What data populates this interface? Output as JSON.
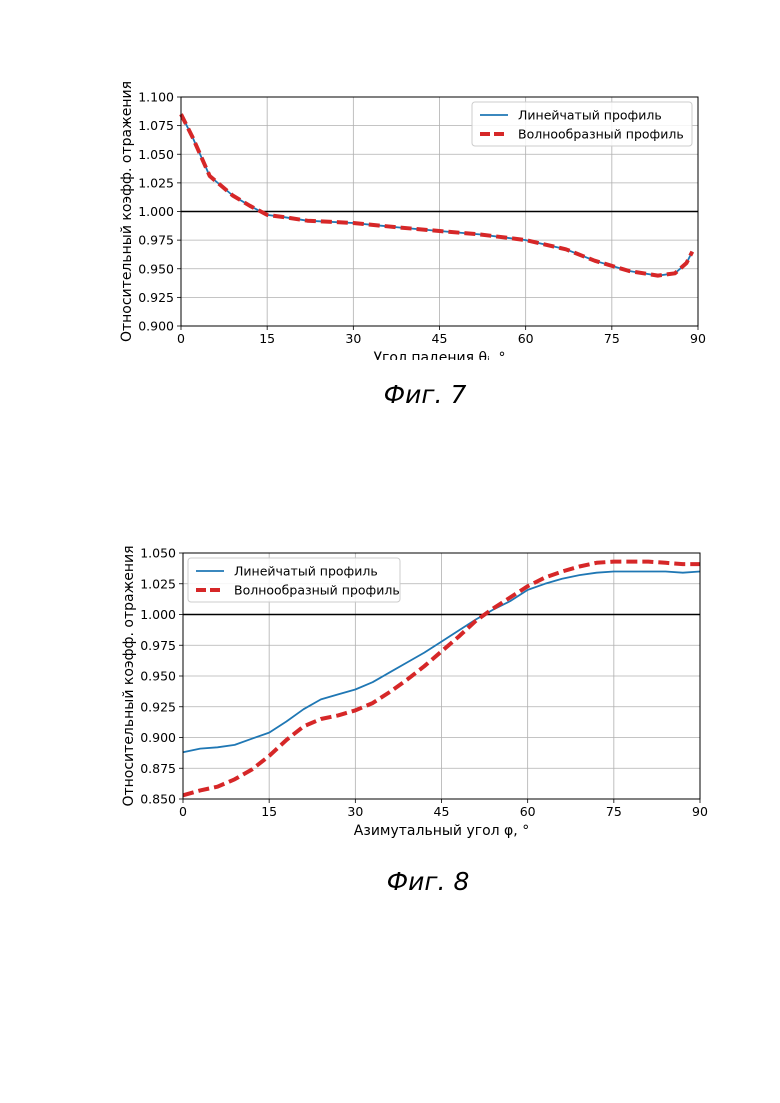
{
  "charts": [
    {
      "id": "fig7",
      "caption": "Фиг. 7",
      "chart_data": {
        "type": "line",
        "xlabel": "Угол падения θᵢ, °",
        "ylabel": "Относительный коэфф. отражения",
        "xlim": [
          0,
          90
        ],
        "ylim": [
          0.9,
          1.1
        ],
        "xticks": [
          "0",
          "15",
          "30",
          "45",
          "60",
          "75",
          "90"
        ],
        "yticks": [
          "0.900",
          "0.925",
          "0.950",
          "0.975",
          "1.000",
          "1.025",
          "1.050",
          "1.075",
          "1.100"
        ],
        "grid": true,
        "reference_line": 1.0,
        "legend": "top-right",
        "series": [
          {
            "name": "Линейчатый профиль",
            "style": "solid",
            "color": "#1f77b4",
            "x": [
              0,
              2,
              5,
              9,
              12,
              15,
              18,
              22,
              30,
              38,
              45,
              52,
              60,
              67,
              72,
              78,
              83,
              86,
              88,
              89
            ],
            "y": [
              1.085,
              1.065,
              1.031,
              1.014,
              1.005,
              0.997,
              0.995,
              0.992,
              0.99,
              0.986,
              0.983,
              0.98,
              0.975,
              0.967,
              0.957,
              0.948,
              0.944,
              0.946,
              0.955,
              0.965
            ]
          },
          {
            "name": "Волнообразный профиль",
            "style": "dashed",
            "color": "#d62728",
            "x": [
              0,
              2,
              5,
              9,
              12,
              15,
              18,
              22,
              30,
              38,
              45,
              52,
              60,
              67,
              72,
              78,
              83,
              86,
              88,
              89
            ],
            "y": [
              1.085,
              1.065,
              1.031,
              1.014,
              1.005,
              0.997,
              0.995,
              0.992,
              0.99,
              0.986,
              0.983,
              0.98,
              0.975,
              0.967,
              0.957,
              0.948,
              0.944,
              0.946,
              0.955,
              0.965
            ]
          }
        ]
      }
    },
    {
      "id": "fig8",
      "caption": "Фиг. 8",
      "chart_data": {
        "type": "line",
        "xlabel": "Азимутальный угол φ, °",
        "ylabel": "Относительный коэфф. отражения",
        "xlim": [
          0,
          90
        ],
        "ylim": [
          0.85,
          1.05
        ],
        "xticks": [
          "0",
          "15",
          "30",
          "45",
          "60",
          "75",
          "90"
        ],
        "yticks": [
          "0.850",
          "0.875",
          "0.900",
          "0.925",
          "0.950",
          "0.975",
          "1.000",
          "1.025",
          "1.050"
        ],
        "grid": true,
        "reference_line": 1.0,
        "legend": "top-left",
        "series": [
          {
            "name": "Линейчатый профиль",
            "style": "solid",
            "color": "#1f77b4",
            "x": [
              0,
              3,
              6,
              9,
              12,
              15,
              18,
              21,
              24,
              27,
              30,
              33,
              36,
              39,
              42,
              45,
              48,
              51,
              54,
              57,
              60,
              63,
              66,
              69,
              72,
              75,
              78,
              81,
              84,
              87,
              90
            ],
            "y": [
              0.888,
              0.891,
              0.892,
              0.894,
              0.899,
              0.904,
              0.913,
              0.923,
              0.931,
              0.935,
              0.939,
              0.945,
              0.953,
              0.961,
              0.969,
              0.978,
              0.987,
              0.996,
              1.004,
              1.011,
              1.02,
              1.025,
              1.029,
              1.032,
              1.034,
              1.035,
              1.035,
              1.035,
              1.035,
              1.034,
              1.035
            ]
          },
          {
            "name": "Волнообразный профиль",
            "style": "dashed",
            "color": "#d62728",
            "x": [
              0,
              3,
              6,
              9,
              12,
              15,
              18,
              21,
              24,
              27,
              30,
              33,
              36,
              39,
              42,
              45,
              48,
              51,
              54,
              57,
              60,
              63,
              66,
              69,
              72,
              75,
              78,
              81,
              84,
              87,
              90
            ],
            "y": [
              0.853,
              0.857,
              0.86,
              0.866,
              0.874,
              0.885,
              0.898,
              0.909,
              0.915,
              0.918,
              0.922,
              0.928,
              0.937,
              0.947,
              0.958,
              0.97,
              0.982,
              0.995,
              1.005,
              1.014,
              1.023,
              1.03,
              1.035,
              1.039,
              1.042,
              1.043,
              1.043,
              1.043,
              1.042,
              1.041,
              1.041
            ]
          }
        ]
      }
    }
  ]
}
